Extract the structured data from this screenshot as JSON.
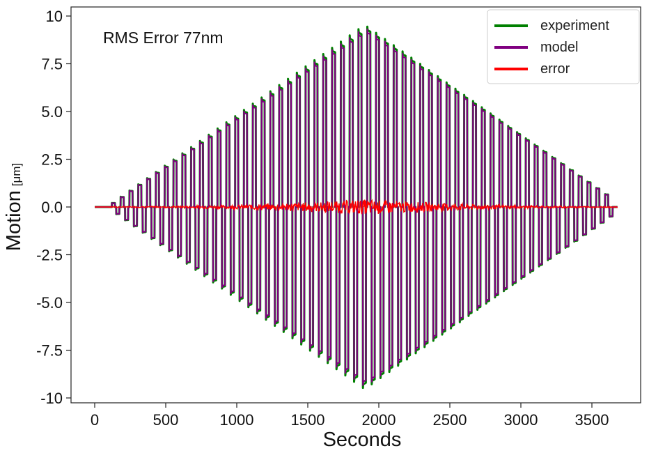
{
  "chart_data": {
    "type": "line",
    "title": "",
    "annotation": "RMS Error 77nm",
    "xlabel": "Seconds",
    "ylabel": "Motion",
    "ylabel_unit": "[μm]",
    "xlim": [
      -120,
      3800
    ],
    "ylim": [
      -10,
      10
    ],
    "x_ticks": [
      0,
      500,
      1000,
      1500,
      2000,
      2500,
      3000,
      3500
    ],
    "x_tick_labels": [
      "0",
      "500",
      "1000",
      "1500",
      "2000",
      "2500",
      "3000",
      "3500"
    ],
    "y_ticks": [
      10,
      7.5,
      5,
      2.5,
      0,
      -2.5,
      -5,
      -7.5,
      -10
    ],
    "y_tick_labels": [
      "10",
      "7.5",
      "5.0",
      "2.5",
      "0.0",
      "-2.5",
      "-5.0",
      "-7.5",
      "-10"
    ],
    "legend_position": "top-right",
    "grid": false,
    "signal": {
      "start": 0,
      "end": 3680,
      "pulse_start": 120,
      "period": 62,
      "peak_time": 1900,
      "peak_amplitude": 9.4,
      "pulse_duration": 22
    },
    "series": [
      {
        "name": "experiment",
        "color": "#008000"
      },
      {
        "name": "model",
        "color": "#800080"
      },
      {
        "name": "error",
        "color": "#ff0000",
        "rms_nm": 77
      }
    ]
  }
}
